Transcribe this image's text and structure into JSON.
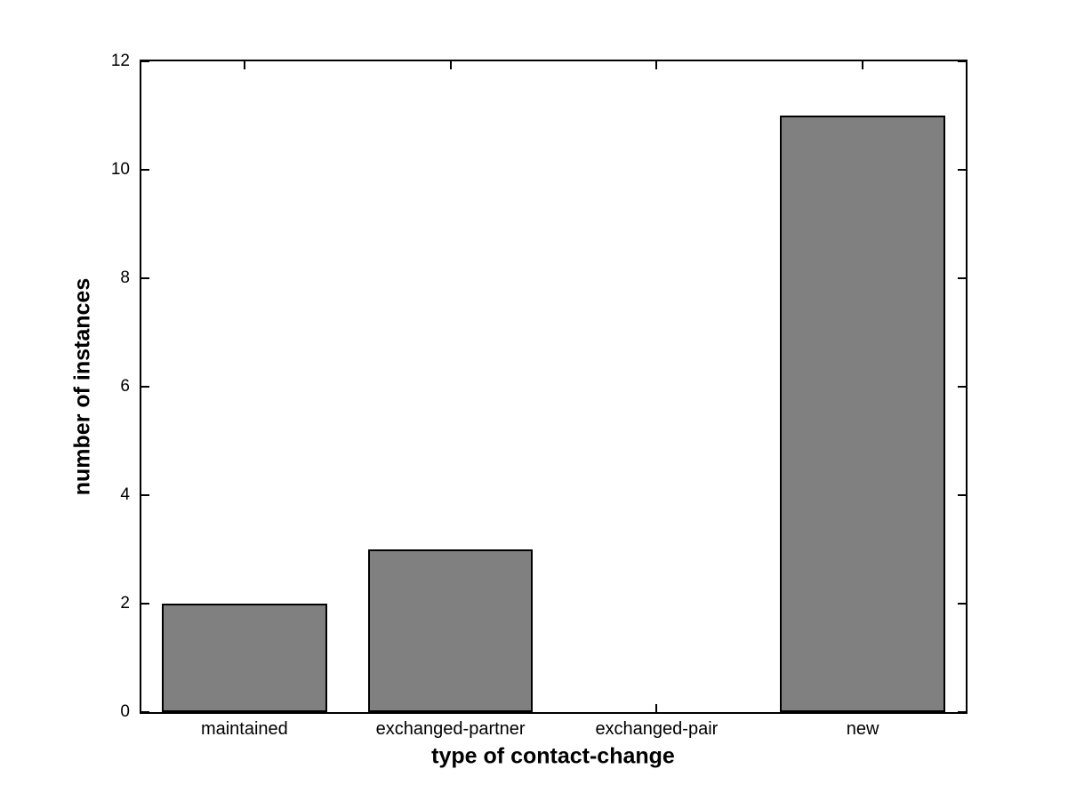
{
  "chart_data": {
    "type": "bar",
    "title": "",
    "xlabel": "type of contact-change",
    "ylabel": "number of instances",
    "categories": [
      "maintained",
      "exchanged-partner",
      "exchanged-pair",
      "new"
    ],
    "values": [
      2,
      3,
      0,
      11
    ],
    "yticks": [
      0,
      2,
      4,
      6,
      8,
      10,
      12
    ],
    "ylim": [
      0,
      12
    ],
    "bar_width_fraction": 0.8,
    "bar_color": "#808080",
    "bar_edge_color": "#000000",
    "axis_color": "#000000",
    "background_color": "#ffffff",
    "grid": false,
    "legend": null,
    "tick_direction": "in"
  }
}
